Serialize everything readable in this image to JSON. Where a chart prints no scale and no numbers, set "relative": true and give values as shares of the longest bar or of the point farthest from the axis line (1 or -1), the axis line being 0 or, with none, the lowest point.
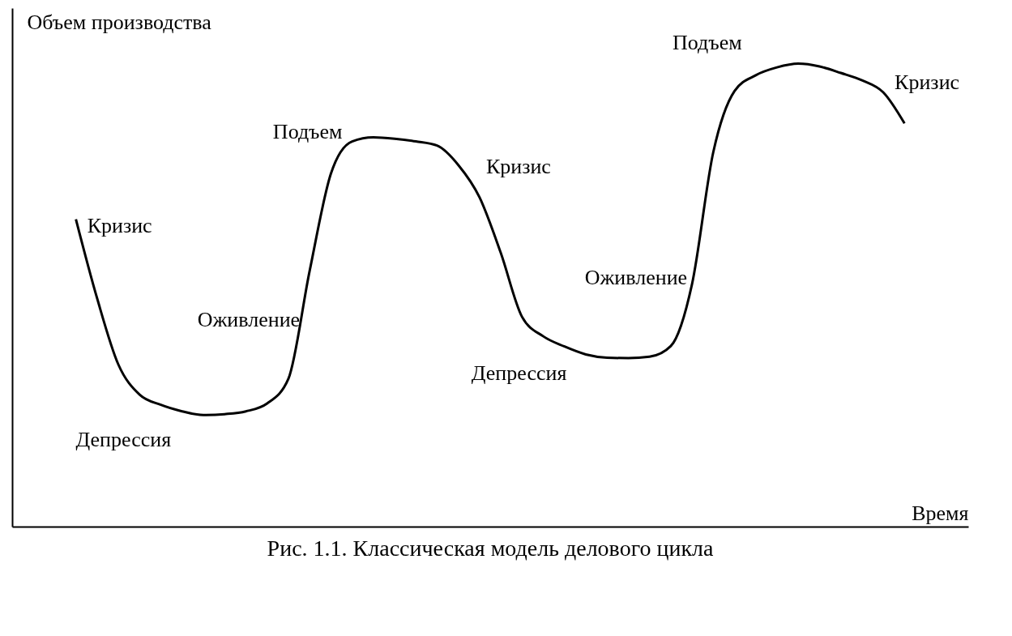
{
  "chart_data": {
    "type": "line",
    "relative": true,
    "title": "Рис. 1.1. Классическая модель делового цикла",
    "xlabel": "Время",
    "ylabel": "Объем производства",
    "categories": [
      null,
      null,
      null,
      null,
      null,
      null,
      null,
      null,
      null,
      null,
      null,
      null,
      null,
      null,
      null,
      null,
      null,
      null,
      null,
      null,
      null,
      null,
      null,
      null,
      null,
      null,
      null,
      null,
      null,
      null,
      null,
      null,
      null,
      null,
      null,
      null,
      null,
      null,
      null,
      null
    ],
    "series": [
      {
        "color": "#000000",
        "values": [
          0.664,
          0.493,
          0.35,
          0.285,
          0.263,
          0.249,
          0.241,
          0.243,
          0.249,
          0.266,
          0.319,
          0.552,
          0.762,
          0.832,
          0.841,
          0.838,
          0.832,
          0.823,
          0.781,
          0.711,
          0.591,
          0.453,
          0.411,
          0.389,
          0.372,
          0.365,
          0.364,
          0.367,
          0.39,
          0.524,
          0.809,
          0.941,
          0.975,
          0.992,
          1,
          0.994,
          0.98,
          0.964,
          0.938,
          0.871
        ]
      }
    ],
    "annotations": [
      "Кризис",
      "Оживление",
      "Подъем",
      "Кризис",
      "Депрессия",
      "Оживление",
      "Депрессия",
      "Подъем",
      "Кризис"
    ],
    "grid": false,
    "marker": "none",
    "line_style": "solid"
  }
}
